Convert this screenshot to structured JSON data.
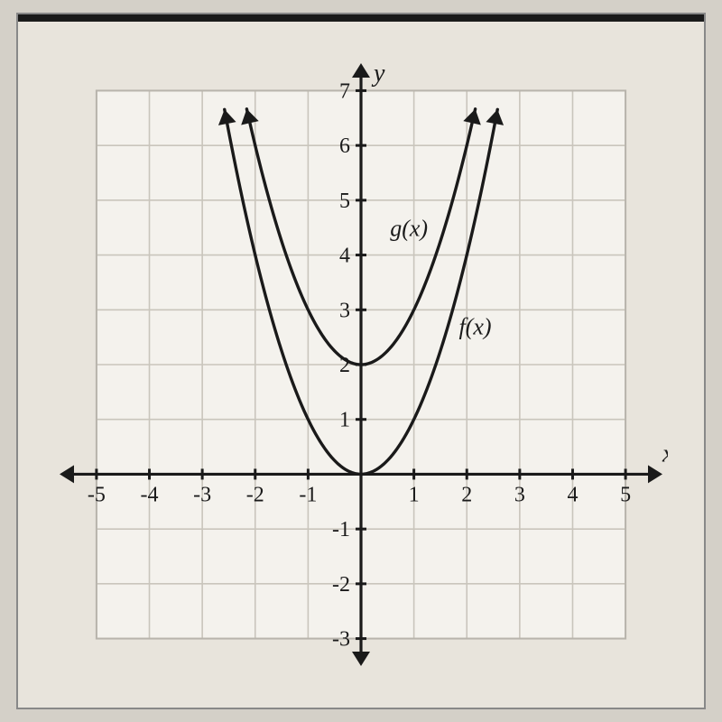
{
  "chart": {
    "type": "line",
    "background_color": "#e8e4dc",
    "plot_background_color": "#f4f2ed",
    "grid_color": "#c9c5bc",
    "axis_color": "#1a1a1a",
    "curve_color": "#1a1a1a",
    "tick_font_size": 24,
    "axis_label_font_size": 28,
    "fn_label_font_size": 26,
    "xlim": [
      -5.8,
      5.8
    ],
    "ylim": [
      -3.6,
      7.6
    ],
    "xtick_step": 1,
    "ytick_step": 1,
    "xticks": [
      -5,
      -4,
      -3,
      -2,
      -1,
      1,
      2,
      3,
      4,
      5
    ],
    "yticks": [
      -3,
      -2,
      -1,
      1,
      2,
      3,
      4,
      5,
      6,
      7
    ],
    "grid_x_range": [
      -5,
      5
    ],
    "grid_y_range": [
      -3,
      7
    ],
    "x_axis_label": "x",
    "y_axis_label": "y",
    "curves": [
      {
        "name": "f(x)",
        "label": "f(x)",
        "label_pos": [
          1.85,
          2.55
        ],
        "formula": "x^2",
        "vertex": [
          0,
          0
        ],
        "coef": 1,
        "x_draw_range": [
          -2.58,
          2.58
        ],
        "arrow_ends": true
      },
      {
        "name": "g(x)",
        "label": "g(x)",
        "label_pos": [
          0.55,
          4.35
        ],
        "formula": "x^2 + 2",
        "vertex": [
          0,
          2
        ],
        "coef": 1,
        "x_draw_range": [
          -2.16,
          2.16
        ],
        "arrow_ends": true
      }
    ]
  }
}
